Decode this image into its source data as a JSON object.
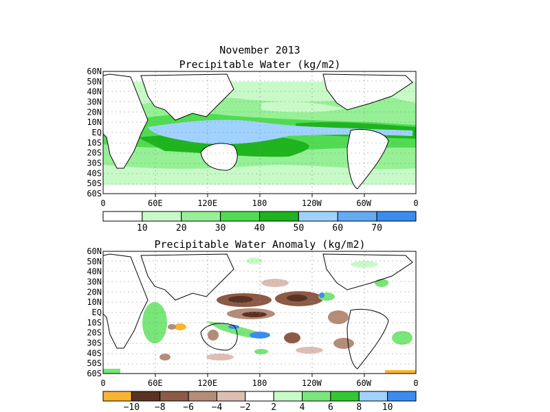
{
  "header": {
    "month": "November 2013",
    "top_title": "Precipitable Water (kg/m2)",
    "bottom_title": "Precipitable Water Anomaly (kg/m2)"
  },
  "axes": {
    "lat_labels": [
      "60N",
      "50N",
      "40N",
      "30N",
      "20N",
      "10N",
      "EQ",
      "10S",
      "20S",
      "30S",
      "40S",
      "50S",
      "60S"
    ],
    "lon_labels": [
      "0",
      "60E",
      "120E",
      "180",
      "120W",
      "60W",
      "0"
    ]
  },
  "top_colorbar": {
    "colors": [
      "#ffffff",
      "#c8fac8",
      "#96f096",
      "#50dc50",
      "#1eb41e",
      "#a0d2ff",
      "#64aaf5",
      "#3c8cf0"
    ],
    "labels": [
      "10",
      "20",
      "30",
      "40",
      "50",
      "60",
      "70"
    ]
  },
  "bottom_colorbar": {
    "colors": [
      "#fab432",
      "#5a3223",
      "#8c5a46",
      "#b48c78",
      "#dcbeb4",
      "#ffffff",
      "#c8fac8",
      "#78e678",
      "#32c832",
      "#a0d2ff",
      "#3c8cf0"
    ],
    "labels": [
      "−10",
      "−8",
      "−6",
      "−4",
      "−2",
      "2",
      "4",
      "6",
      "8",
      "10"
    ]
  },
  "fields": {
    "pw": {
      "description_colors": {
        "low": "#ffffff",
        "mid": "#96f096",
        "high": "#1eb41e",
        "max": "#a0d2ff"
      }
    }
  }
}
